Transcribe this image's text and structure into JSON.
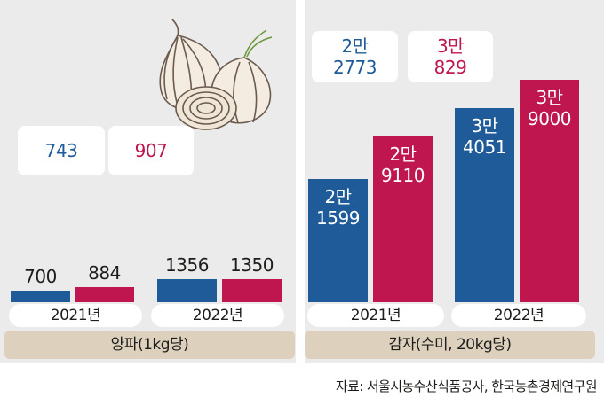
{
  "colors": {
    "y2021": "#1f5b99",
    "y2022": "#bf1650",
    "category_band": "#ddd1bd",
    "panel_bg": "#ebebeb"
  },
  "illustration": "onion-illustration",
  "chart_data": [
    {
      "type": "bar",
      "category": "양파(1kg당)",
      "categories": [
        "2021년",
        "2022년"
      ],
      "series": [
        {
          "color": "#1f5b99",
          "values": [
            700,
            1356
          ]
        },
        {
          "color": "#bf1650",
          "values": [
            884,
            1350
          ]
        }
      ],
      "value_labels": [
        [
          "700",
          "1356"
        ],
        [
          "884",
          "1350"
        ]
      ],
      "highlight_labels": [
        "743",
        "907"
      ]
    },
    {
      "type": "bar",
      "category": "감자(수미, 20kg당)",
      "categories": [
        "2021년",
        "2022년"
      ],
      "series": [
        {
          "color": "#1f5b99",
          "values": [
            21599,
            34051
          ]
        },
        {
          "color": "#bf1650",
          "values": [
            29110,
            39000
          ]
        }
      ],
      "value_labels": [
        [
          [
            "2만",
            "1599"
          ],
          [
            "3만",
            "4051"
          ]
        ],
        [
          [
            "2만",
            "9110"
          ],
          [
            "3만",
            "9000"
          ]
        ]
      ],
      "highlight_labels": [
        [
          "2만",
          "2773"
        ],
        [
          "3만",
          "829"
        ]
      ]
    }
  ],
  "source": "자료: 서울시농수산식품공사, 한국농촌경제연구원"
}
